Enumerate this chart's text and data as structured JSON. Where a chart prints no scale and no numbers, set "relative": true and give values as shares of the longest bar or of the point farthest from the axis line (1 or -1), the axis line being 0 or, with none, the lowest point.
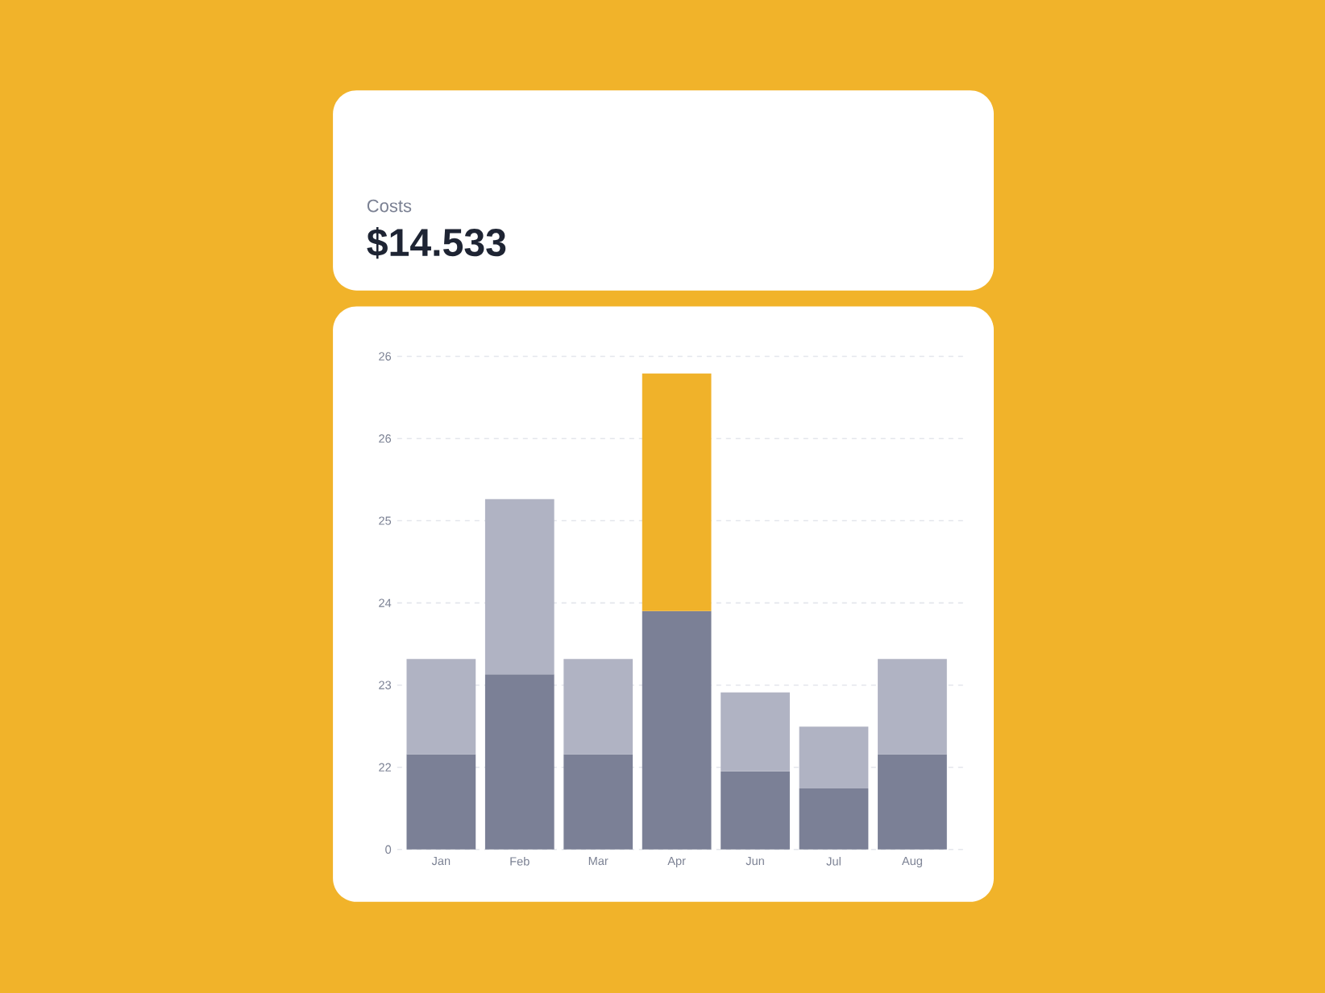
{
  "chart_data": {
    "type": "bar",
    "title": "Costs",
    "subtitle": "$14.533",
    "categories": [
      "Jan",
      "Feb",
      "Mar",
      "Apr",
      "Jun",
      "Jul",
      "Aug"
    ],
    "stacked": true,
    "relative": true,
    "grid": "y",
    "annotations": [
      "0",
      "22",
      "23",
      "24",
      "25",
      "26",
      "26"
    ],
    "series": [
      {
        "color": "#7b8096",
        "values": [
          0.2,
          0.368,
          0.2,
          0.501,
          0.164,
          0.128,
          0.2
        ]
      },
      {
        "color": "#b0b3c3",
        "colors": [
          "#b0b3c3",
          "#b0b3c3",
          "#b0b3c3",
          "#f0b22a",
          "#b0b3c3",
          "#b0b3c3",
          "#b0b3c3"
        ],
        "values": [
          0.2,
          0.368,
          0.2,
          0.499,
          0.166,
          0.13,
          0.2
        ]
      }
    ]
  }
}
